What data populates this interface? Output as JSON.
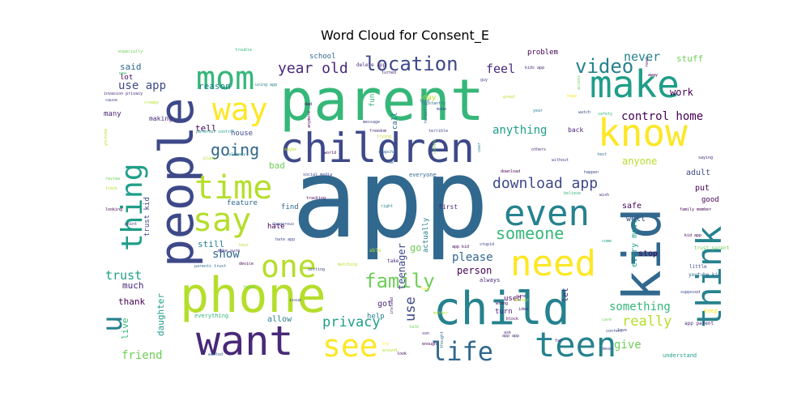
{
  "chart_data": {
    "type": "word_cloud",
    "title": "Word Cloud for Consent_E",
    "colormap": [
      "#440154",
      "#482878",
      "#3e4989",
      "#31688e",
      "#26828e",
      "#1f9e89",
      "#35b779",
      "#6ece58",
      "#b5de2b",
      "#fde725"
    ],
    "words": [
      {
        "text": "app",
        "weight": 100,
        "color": "#31688e"
      },
      {
        "text": "parent",
        "weight": 72,
        "color": "#35b779"
      },
      {
        "text": "child",
        "weight": 58,
        "color": "#26828e"
      },
      {
        "text": "kid",
        "weight": 56,
        "color": "#31688e"
      },
      {
        "text": "people",
        "weight": 55,
        "color": "#3e4989"
      },
      {
        "text": "phone",
        "weight": 52,
        "color": "#b5de2b"
      },
      {
        "text": "children",
        "weight": 46,
        "color": "#3e4989"
      },
      {
        "text": "want",
        "weight": 45,
        "color": "#482878"
      },
      {
        "text": "make",
        "weight": 42,
        "color": "#1f9e89"
      },
      {
        "text": "know",
        "weight": 42,
        "color": "#fde725"
      },
      {
        "text": "think",
        "weight": 40,
        "color": "#26828e"
      },
      {
        "text": "need",
        "weight": 40,
        "color": "#fde725"
      },
      {
        "text": "teen",
        "weight": 38,
        "color": "#26828e"
      },
      {
        "text": "even",
        "weight": 37,
        "color": "#26828e"
      },
      {
        "text": "thing",
        "weight": 35,
        "color": "#1f9e89"
      },
      {
        "text": "mom",
        "weight": 34,
        "color": "#35b779"
      },
      {
        "text": "say",
        "weight": 34,
        "color": "#b5de2b"
      },
      {
        "text": "time",
        "weight": 34,
        "color": "#b5de2b"
      },
      {
        "text": "one",
        "weight": 33,
        "color": "#b5de2b"
      },
      {
        "text": "see",
        "weight": 33,
        "color": "#fde725"
      },
      {
        "text": "way",
        "weight": 31,
        "color": "#fde725"
      },
      {
        "text": "life",
        "weight": 28,
        "color": "#31688e"
      },
      {
        "text": "u",
        "weight": 28,
        "color": "#26828e"
      },
      {
        "text": "video",
        "weight": 22,
        "color": "#26828e"
      },
      {
        "text": "location",
        "weight": 22,
        "color": "#3e4989"
      },
      {
        "text": "family",
        "weight": 22,
        "color": "#6ece58"
      },
      {
        "text": "going",
        "weight": 19,
        "color": "#31688e"
      },
      {
        "text": "someone",
        "weight": 18,
        "color": "#35b779"
      },
      {
        "text": "download app",
        "weight": 17,
        "color": "#3e4989"
      },
      {
        "text": "year old",
        "weight": 17,
        "color": "#482878"
      },
      {
        "text": "privacy",
        "weight": 16,
        "color": "#1f9e89"
      },
      {
        "text": "really",
        "weight": 16,
        "color": "#b5de2b"
      },
      {
        "text": "use",
        "weight": 16,
        "color": "#3e4989"
      },
      {
        "text": "trust",
        "weight": 14,
        "color": "#1f9e89"
      },
      {
        "text": "feel",
        "weight": 14,
        "color": "#482878"
      },
      {
        "text": "never",
        "weight": 14,
        "color": "#26828e"
      },
      {
        "text": "anything",
        "weight": 13,
        "color": "#1f9e89"
      },
      {
        "text": "friend",
        "weight": 13,
        "color": "#6ece58"
      },
      {
        "text": "use app",
        "weight": 13,
        "color": "#3e4989"
      },
      {
        "text": "control home",
        "weight": 13,
        "color": "#440154"
      },
      {
        "text": "something",
        "weight": 13,
        "color": "#35b779"
      },
      {
        "text": "give",
        "weight": 13,
        "color": "#6ece58"
      },
      {
        "text": "show",
        "weight": 13,
        "color": "#31688e"
      },
      {
        "text": "please",
        "weight": 13,
        "color": "#31688e"
      },
      {
        "text": "person",
        "weight": 12,
        "color": "#440154"
      },
      {
        "text": "go",
        "weight": 12,
        "color": "#6ece58"
      },
      {
        "text": "teenager",
        "weight": 12,
        "color": "#3e4989"
      },
      {
        "text": "anyone",
        "weight": 12,
        "color": "#b5de2b"
      },
      {
        "text": "work",
        "weight": 12,
        "color": "#440154"
      },
      {
        "text": "stuff",
        "weight": 11,
        "color": "#6ece58"
      },
      {
        "text": "said",
        "weight": 11,
        "color": "#31688e"
      },
      {
        "text": "tell",
        "weight": 11,
        "color": "#440154"
      },
      {
        "text": "reason",
        "weight": 11,
        "color": "#26828e"
      },
      {
        "text": "bad",
        "weight": 11,
        "color": "#6ece58"
      },
      {
        "text": "still",
        "weight": 11,
        "color": "#26828e"
      },
      {
        "text": "much",
        "weight": 11,
        "color": "#482878"
      },
      {
        "text": "thank",
        "weight": 11,
        "color": "#440154"
      },
      {
        "text": "daughter",
        "weight": 11,
        "color": "#1f9e89"
      },
      {
        "text": "live",
        "weight": 10,
        "color": "#35b779"
      },
      {
        "text": "adult",
        "weight": 10,
        "color": "#3e4989"
      },
      {
        "text": "put",
        "weight": 10,
        "color": "#440154"
      },
      {
        "text": "well",
        "weight": 10,
        "color": "#3e4989"
      },
      {
        "text": "safe",
        "weight": 10,
        "color": "#440154"
      },
      {
        "text": "every move",
        "weight": 10,
        "color": "#1f9e89"
      },
      {
        "text": "stop",
        "weight": 10,
        "color": "#440154"
      },
      {
        "text": "let",
        "weight": 10,
        "color": "#482878"
      },
      {
        "text": "got",
        "weight": 10,
        "color": "#482878"
      },
      {
        "text": "allow",
        "weight": 10,
        "color": "#26828e"
      },
      {
        "text": "used",
        "weight": 9,
        "color": "#440154"
      },
      {
        "text": "turn",
        "weight": 9,
        "color": "#482878"
      },
      {
        "text": "help",
        "weight": 9,
        "color": "#26828e"
      },
      {
        "text": "feature",
        "weight": 9,
        "color": "#31688e"
      },
      {
        "text": "find",
        "weight": 9,
        "color": "#31688e"
      },
      {
        "text": "hate",
        "weight": 9,
        "color": "#440154"
      },
      {
        "text": "house",
        "weight": 9,
        "color": "#3e4989"
      },
      {
        "text": "lot",
        "weight": 9,
        "color": "#440154"
      },
      {
        "text": "many",
        "weight": 9,
        "color": "#482878"
      },
      {
        "text": "trust kid",
        "weight": 9,
        "color": "#3e4989"
      },
      {
        "text": "problem",
        "weight": 9,
        "color": "#440154"
      },
      {
        "text": "school",
        "weight": 9,
        "color": "#31688e"
      },
      {
        "text": "good",
        "weight": 9,
        "color": "#440154"
      },
      {
        "text": "fun",
        "weight": 9,
        "color": "#35b779"
      },
      {
        "text": "day",
        "weight": 9,
        "color": "#b5de2b"
      },
      {
        "text": "call",
        "weight": 9,
        "color": "#31688e"
      },
      {
        "text": "actually",
        "weight": 9,
        "color": "#26828e"
      },
      {
        "text": "first",
        "weight": 8,
        "color": "#482878"
      },
      {
        "text": "back",
        "weight": 8,
        "color": "#482878"
      },
      {
        "text": "making",
        "weight": 8,
        "color": "#482878"
      },
      {
        "text": "keep",
        "weight": 7,
        "color": "#fde725"
      },
      {
        "text": "understand",
        "weight": 7,
        "color": "#1f9e89"
      },
      {
        "text": "everyone",
        "weight": 7,
        "color": "#31688e"
      },
      {
        "text": "everything",
        "weight": 7,
        "color": "#35b779"
      },
      {
        "text": "always",
        "weight": 7,
        "color": "#482878"
      },
      {
        "text": "able",
        "weight": 6,
        "color": "#b5de2b"
      },
      {
        "text": "take",
        "weight": 6,
        "color": "#482878"
      },
      {
        "text": "delete app",
        "weight": 6,
        "color": "#482878"
      },
      {
        "text": "youtube kid",
        "weight": 6,
        "color": "#31688e"
      },
      {
        "text": "app parent",
        "weight": 6,
        "color": "#482878"
      },
      {
        "text": "trust parent",
        "weight": 6,
        "color": "#6ece58"
      },
      {
        "text": "little",
        "weight": 6,
        "color": "#3e4989"
      },
      {
        "text": "parental control",
        "weight": 5,
        "color": "#1f9e89"
      },
      {
        "text": "social media",
        "weight": 5,
        "color": "#3e4989"
      },
      {
        "text": "tracking",
        "weight": 5,
        "color": "#440154"
      },
      {
        "text": "dangerous",
        "weight": 5,
        "color": "#3e4989"
      },
      {
        "text": "hate app",
        "weight": 5,
        "color": "#3e4989"
      },
      {
        "text": "make sure",
        "weight": 5,
        "color": "#482878"
      },
      {
        "text": "parents trust",
        "weight": 5,
        "color": "#31688e"
      },
      {
        "text": "invasion privacy",
        "weight": 5,
        "color": "#482878"
      },
      {
        "text": "especially",
        "weight": 5,
        "color": "#6ece58"
      },
      {
        "text": "creepy",
        "weight": 5,
        "color": "#b5de2b"
      },
      {
        "text": "using app",
        "weight": 5,
        "color": "#26828e"
      },
      {
        "text": "trouble",
        "weight": 5,
        "color": "#35b779"
      },
      {
        "text": "turned",
        "weight": 5,
        "color": "#482878"
      },
      {
        "text": "kids app",
        "weight": 5,
        "color": "#482878"
      },
      {
        "text": "guy",
        "weight": 5,
        "color": "#3e4989"
      },
      {
        "text": "access",
        "weight": 5,
        "color": "#6ece58"
      },
      {
        "text": "watch",
        "weight": 5,
        "color": "#3e4989"
      },
      {
        "text": "safety",
        "weight": 5,
        "color": "#35b779"
      },
      {
        "text": "year",
        "weight": 5,
        "color": "#26828e"
      },
      {
        "text": "honestly",
        "weight": 5,
        "color": "#31688e"
      },
      {
        "text": "constantly",
        "weight": 5,
        "color": "#31688e"
      },
      {
        "text": "told",
        "weight": 5,
        "color": "#31688e"
      },
      {
        "text": "made",
        "weight": 5,
        "color": "#3e4989"
      },
      {
        "text": "message",
        "weight": 5,
        "color": "#3e4989"
      },
      {
        "text": "freedom",
        "weight": 5,
        "color": "#482878"
      },
      {
        "text": "trying",
        "weight": 5,
        "color": "#b5de2b"
      },
      {
        "text": "terrible",
        "weight": 5,
        "color": "#3e4989"
      },
      {
        "text": "update",
        "weight": 5,
        "color": "#6ece58"
      },
      {
        "text": "snapchat",
        "weight": 5,
        "color": "#31688e"
      },
      {
        "text": "world",
        "weight": 5,
        "color": "#440154"
      },
      {
        "text": "maybe",
        "weight": 5,
        "color": "#b5de2b"
      },
      {
        "text": "cause",
        "weight": 5,
        "color": "#3e4989"
      },
      {
        "text": "dad",
        "weight": 5,
        "color": "#440154"
      },
      {
        "text": "anymore",
        "weight": 5,
        "color": "#440154"
      },
      {
        "text": "already",
        "weight": 5,
        "color": "#26828e"
      },
      {
        "text": "place",
        "weight": 5,
        "color": "#b5de2b"
      },
      {
        "text": "review",
        "weight": 5,
        "color": "#6ece58"
      },
      {
        "text": "looking",
        "weight": 5,
        "color": "#440154"
      },
      {
        "text": "point",
        "weight": 5,
        "color": "#482878"
      },
      {
        "text": "device",
        "weight": 5,
        "color": "#440154"
      },
      {
        "text": "hour",
        "weight": 5,
        "color": "#b5de2b"
      },
      {
        "text": "setting",
        "weight": 5,
        "color": "#3e4989"
      },
      {
        "text": "matching",
        "weight": 5,
        "color": "#b5de2b"
      },
      {
        "text": "issue",
        "weight": 5,
        "color": "#3e4989"
      },
      {
        "text": "wanted",
        "weight": 5,
        "color": "#31688e"
      },
      {
        "text": "found",
        "weight": 5,
        "color": "#6ece58"
      },
      {
        "text": "instead",
        "weight": 5,
        "color": "#482878"
      },
      {
        "text": "look",
        "weight": 5,
        "color": "#440154"
      },
      {
        "text": "mother",
        "weight": 5,
        "color": "#b5de2b"
      },
      {
        "text": "son",
        "weight": 5,
        "color": "#482878"
      },
      {
        "text": "enough",
        "weight": 5,
        "color": "#440154"
      },
      {
        "text": "thought",
        "weight": 5,
        "color": "#31688e"
      },
      {
        "text": "talk",
        "weight": 5,
        "color": "#6ece58"
      },
      {
        "text": "app kid",
        "weight": 5,
        "color": "#440154"
      },
      {
        "text": "stupid",
        "weight": 5,
        "color": "#3e4989"
      },
      {
        "text": "idea",
        "weight": 5,
        "color": "#482878"
      },
      {
        "text": "block",
        "weight": 5,
        "color": "#440154"
      },
      {
        "text": "wrong",
        "weight": 5,
        "color": "#440154"
      },
      {
        "text": "far",
        "weight": 5,
        "color": "#482878"
      },
      {
        "text": "content",
        "weight": 5,
        "color": "#3e4989"
      },
      {
        "text": "love",
        "weight": 5,
        "color": "#3e4989"
      },
      {
        "text": "mean",
        "weight": 5,
        "color": "#3e4989"
      },
      {
        "text": "happen",
        "weight": 5,
        "color": "#3e4989"
      },
      {
        "text": "believe",
        "weight": 5,
        "color": "#35b779"
      },
      {
        "text": "download",
        "weight": 5,
        "color": "#440154"
      },
      {
        "text": "without",
        "weight": 5,
        "color": "#3e4989"
      },
      {
        "text": "others",
        "weight": 5,
        "color": "#482878"
      },
      {
        "text": "text",
        "weight": 5,
        "color": "#31688e"
      },
      {
        "text": "family member",
        "weight": 5,
        "color": "#440154"
      },
      {
        "text": "wish",
        "weight": 5,
        "color": "#482878"
      },
      {
        "text": "saying",
        "weight": 5,
        "color": "#482878"
      },
      {
        "text": "supposed",
        "weight": 5,
        "color": "#3e4989"
      },
      {
        "text": "come",
        "weight": 5,
        "color": "#1f9e89"
      },
      {
        "text": "sure",
        "weight": 5,
        "color": "#440154"
      },
      {
        "text": "better",
        "weight": 5,
        "color": "#b5de2b"
      },
      {
        "text": "fact",
        "weight": 5,
        "color": "#fde725"
      },
      {
        "text": "ok",
        "weight": 5,
        "color": "#31688e"
      },
      {
        "text": "right",
        "weight": 5,
        "color": "#26828e"
      },
      {
        "text": "great",
        "weight": 5,
        "color": "#b5de2b"
      },
      {
        "text": "hope",
        "weight": 5,
        "color": "#fde725"
      },
      {
        "text": "away",
        "weight": 5,
        "color": "#440154"
      },
      {
        "text": "read",
        "weight": 5,
        "color": "#482878"
      },
      {
        "text": "ask",
        "weight": 5,
        "color": "#482878"
      },
      {
        "text": "care",
        "weight": 5,
        "color": "#6ece58"
      },
      {
        "text": "around",
        "weight": 5,
        "color": "#b5de2b"
      },
      {
        "text": "try",
        "weight": 5,
        "color": "#fde725"
      },
      {
        "text": "track",
        "weight": 5,
        "color": "#b5de2b"
      },
      {
        "text": "youtube",
        "weight": 5,
        "color": "#b5de2b"
      },
      {
        "text": "new",
        "weight": 5,
        "color": "#35b779"
      },
      {
        "text": "kid app",
        "weight": 5,
        "color": "#440154"
      },
      {
        "text": "app app",
        "weight": 5,
        "color": "#482878"
      },
      {
        "text": "user",
        "weight": 5,
        "color": "#26828e"
      }
    ]
  }
}
